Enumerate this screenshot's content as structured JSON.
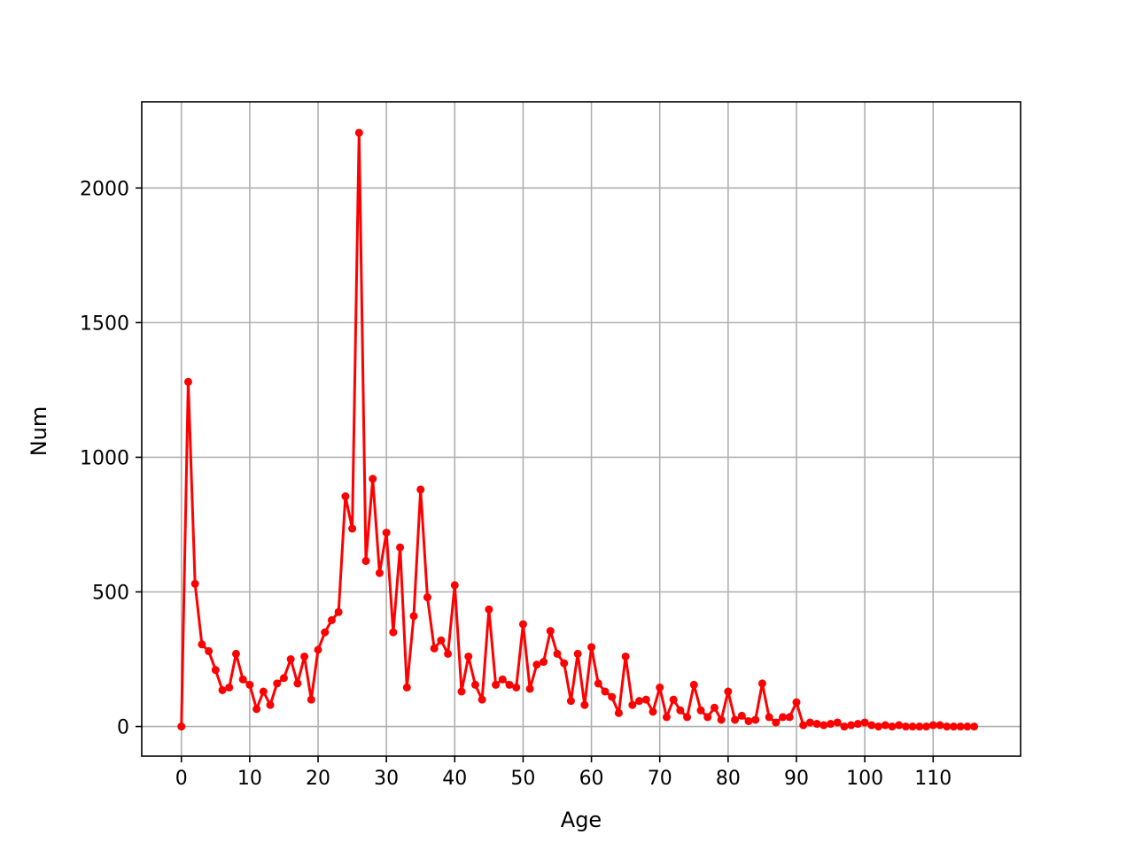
{
  "chart_data": {
    "type": "line",
    "title": "",
    "xlabel": "Age",
    "ylabel": "Num",
    "xlim": [
      -5.8,
      122.8
    ],
    "ylim": [
      -110,
      2320
    ],
    "x_ticks": [
      0,
      10,
      20,
      30,
      40,
      50,
      60,
      70,
      80,
      90,
      100,
      110
    ],
    "y_ticks": [
      0,
      500,
      1000,
      1500,
      2000
    ],
    "grid": true,
    "legend": "none",
    "series": [
      {
        "color": "#ff0000",
        "marker": "circle",
        "x": [
          0,
          1,
          2,
          3,
          4,
          5,
          6,
          7,
          8,
          9,
          10,
          11,
          12,
          13,
          14,
          15,
          16,
          17,
          18,
          19,
          20,
          21,
          22,
          23,
          24,
          25,
          26,
          27,
          28,
          29,
          30,
          31,
          32,
          33,
          34,
          35,
          36,
          37,
          38,
          39,
          40,
          41,
          42,
          43,
          44,
          45,
          46,
          47,
          48,
          49,
          50,
          51,
          52,
          53,
          54,
          55,
          56,
          57,
          58,
          59,
          60,
          61,
          62,
          63,
          64,
          65,
          66,
          67,
          68,
          69,
          70,
          71,
          72,
          73,
          74,
          75,
          76,
          77,
          78,
          79,
          80,
          81,
          82,
          83,
          84,
          85,
          86,
          87,
          88,
          89,
          90,
          91,
          92,
          93,
          94,
          95,
          96,
          97,
          98,
          99,
          100,
          101,
          102,
          103,
          104,
          105,
          106,
          107,
          108,
          109,
          110,
          111,
          112,
          113,
          114,
          115,
          116
        ],
        "values": [
          0,
          1280,
          530,
          305,
          280,
          210,
          135,
          145,
          270,
          175,
          155,
          65,
          130,
          80,
          160,
          180,
          250,
          160,
          260,
          100,
          285,
          350,
          395,
          425,
          855,
          735,
          2205,
          615,
          920,
          570,
          720,
          350,
          665,
          145,
          410,
          880,
          480,
          290,
          320,
          270,
          525,
          130,
          260,
          155,
          100,
          435,
          155,
          175,
          155,
          145,
          380,
          140,
          230,
          240,
          355,
          270,
          235,
          95,
          270,
          80,
          295,
          160,
          130,
          110,
          50,
          260,
          80,
          95,
          100,
          55,
          145,
          35,
          100,
          60,
          35,
          155,
          60,
          35,
          70,
          25,
          130,
          25,
          40,
          20,
          25,
          160,
          35,
          15,
          35,
          35,
          90,
          5,
          15,
          10,
          5,
          10,
          15,
          0,
          5,
          10,
          15,
          5,
          0,
          5,
          0,
          5,
          0,
          0,
          0,
          0,
          5,
          5,
          0,
          0,
          0,
          0,
          0
        ]
      }
    ]
  }
}
